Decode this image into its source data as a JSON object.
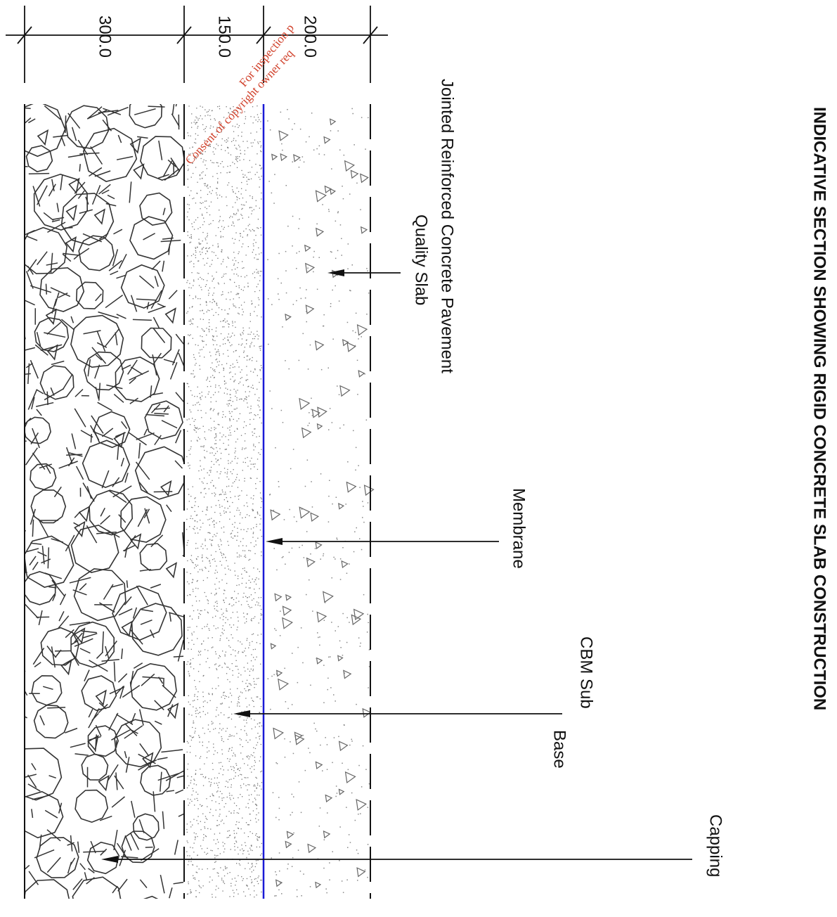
{
  "title": "INDICATIVE SECTION SHOWING RIGID CONCRETE SLAB CONSTRUCTION",
  "dimensions": [
    "300.0",
    "150.0",
    "200.0"
  ],
  "labels": {
    "slab": [
      "Jointed Reinforced Concrete Pavement",
      "Quality Slab"
    ],
    "membrane": "Membrane",
    "subbase": [
      "CBM Sub",
      "Base"
    ],
    "capping": "Capping"
  },
  "watermark": [
    "For inspection p",
    "Consent of copyright owner req"
  ]
}
